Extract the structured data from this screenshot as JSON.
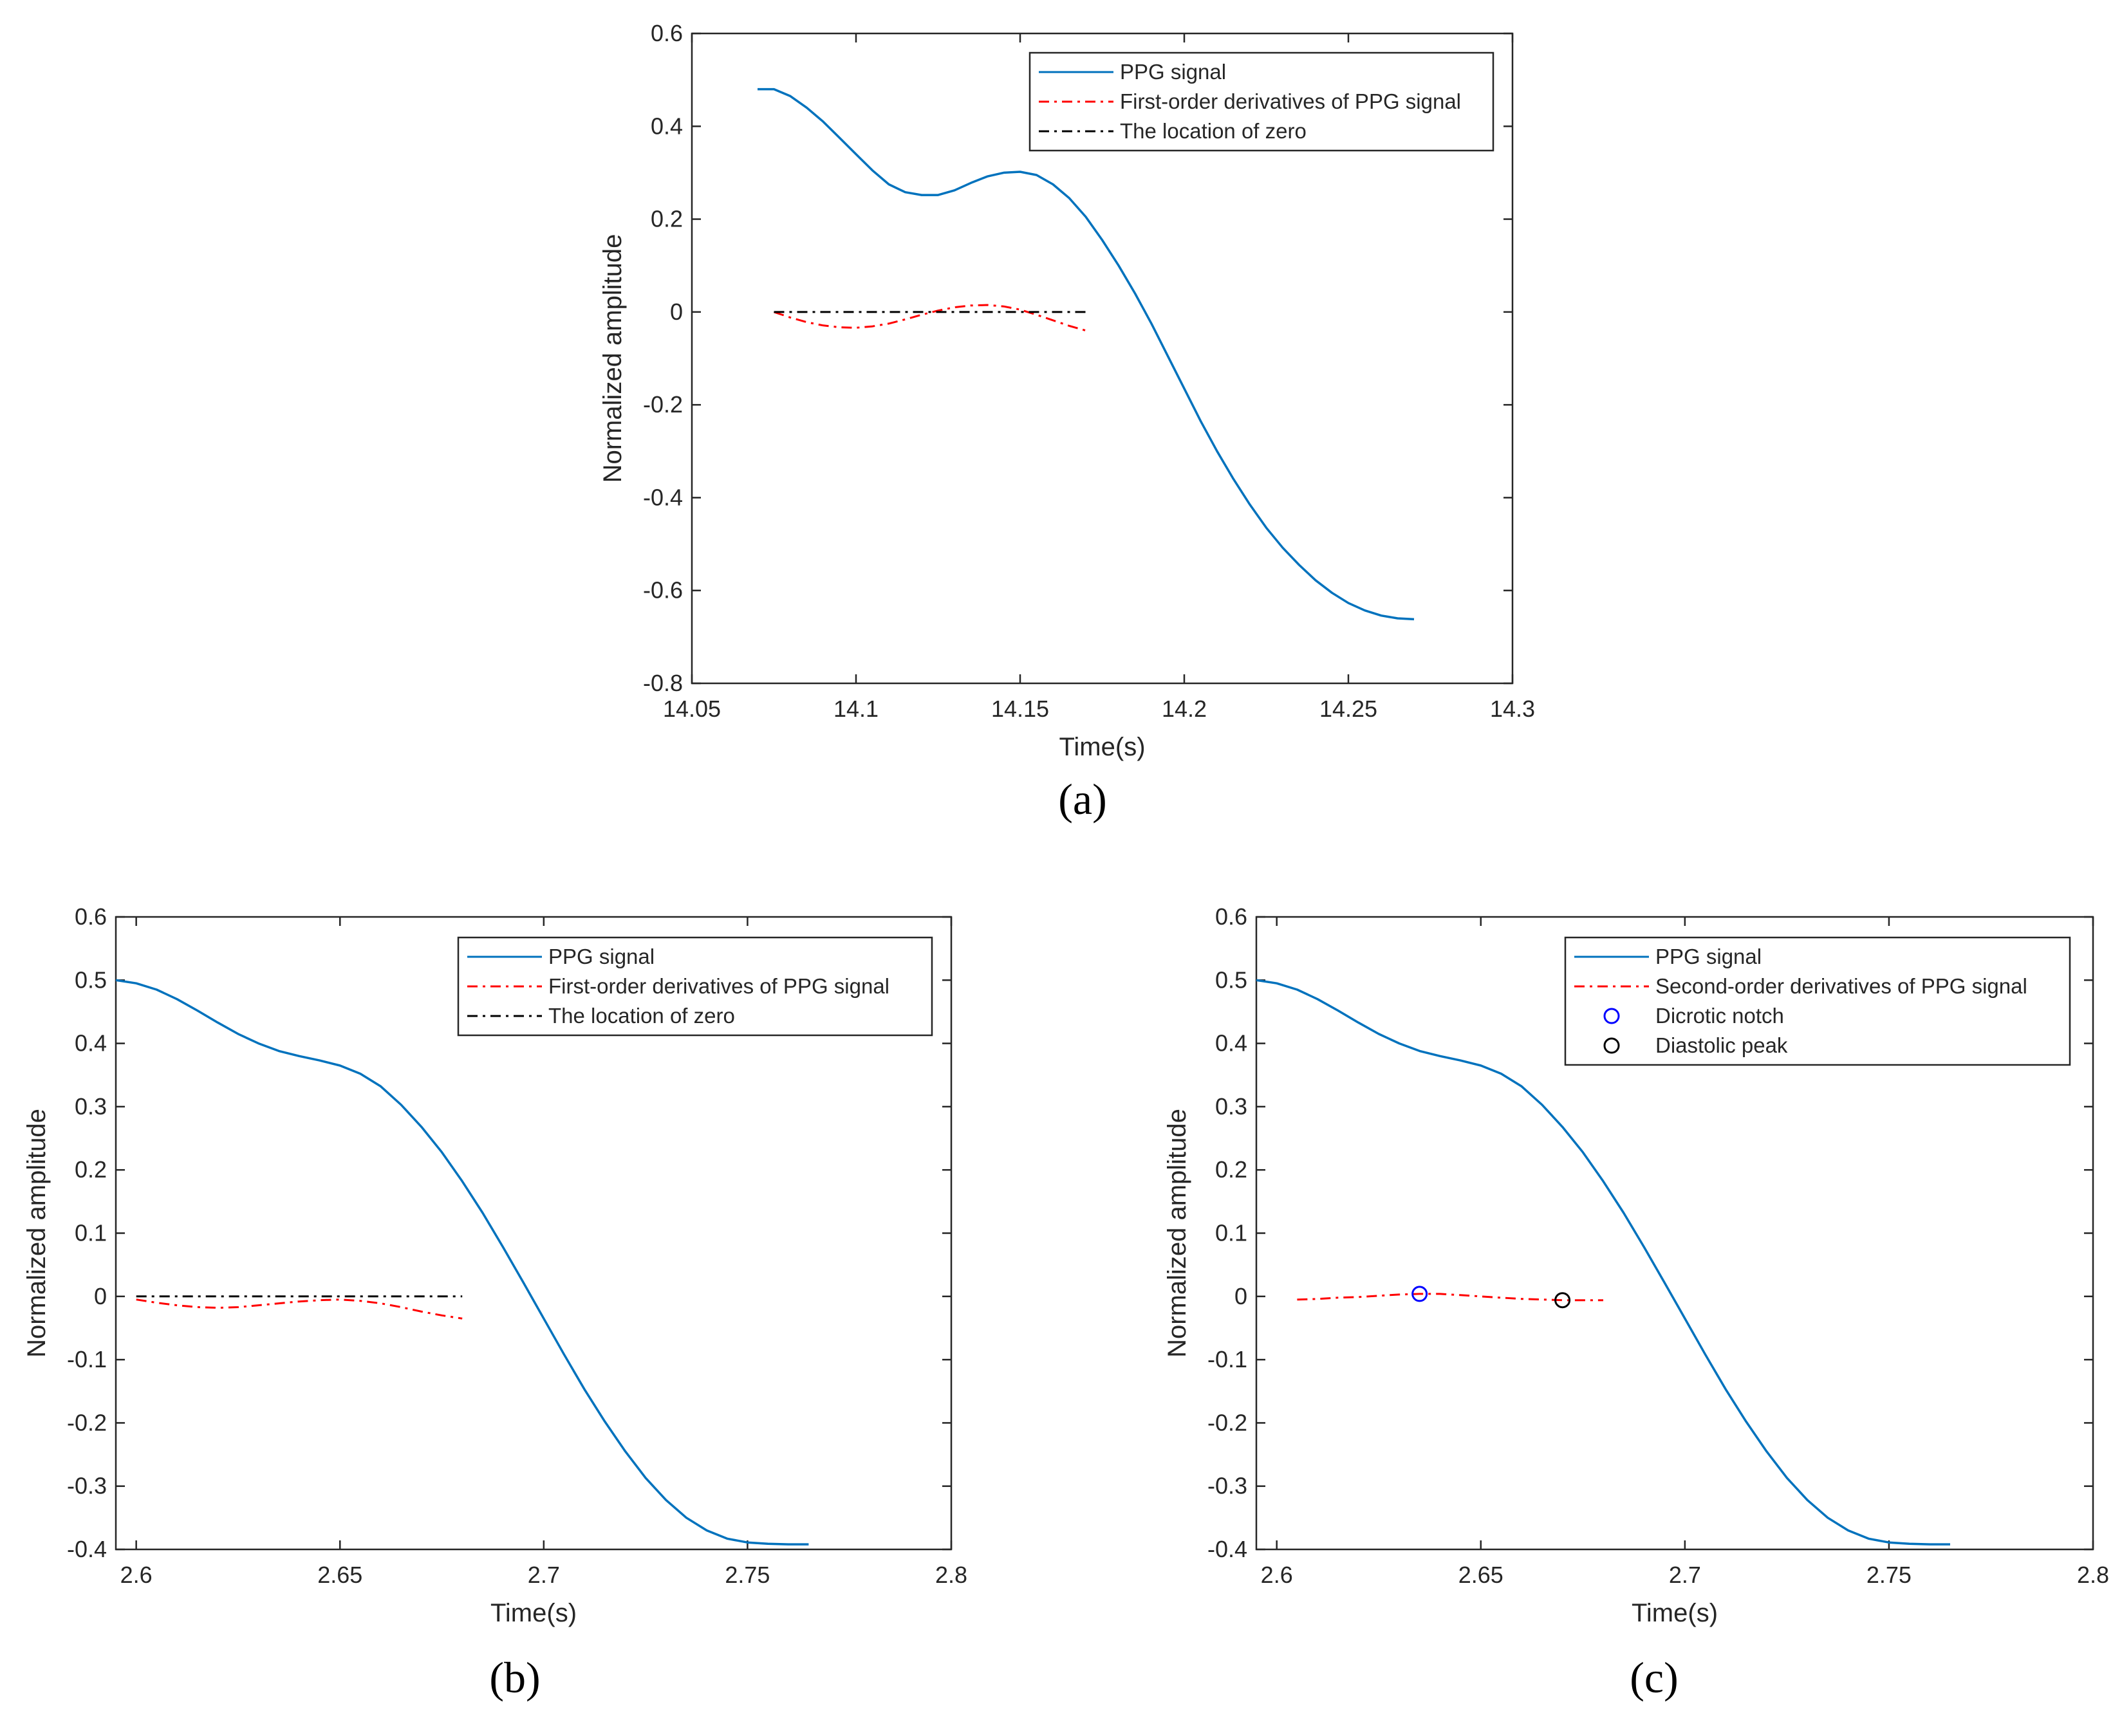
{
  "chart_data": [
    {
      "type": "line",
      "caption": "(a)",
      "xlabel": "Time(s)",
      "ylabel": "Normalized amplitude",
      "xlim": [
        14.05,
        14.3
      ],
      "ylim": [
        -0.8,
        0.6
      ],
      "xticks": [
        14.05,
        14.1,
        14.15,
        14.2,
        14.25,
        14.3
      ],
      "xtick_labels": [
        "14.05",
        "14.1",
        "14.15",
        "14.2",
        "14.25",
        "14.3"
      ],
      "yticks": [
        -0.8,
        -0.6,
        -0.4,
        -0.2,
        0,
        0.2,
        0.4,
        0.6
      ],
      "ytick_labels": [
        "-0.8",
        "-0.6",
        "-0.4",
        "-0.2",
        "0",
        "0.2",
        "0.4",
        "0.6"
      ],
      "legend_position": "top-right",
      "series": [
        {
          "name": "PPG signal",
          "color": "#0072BD",
          "style": "solid",
          "x": [
            14.07,
            14.075,
            14.08,
            14.085,
            14.09,
            14.095,
            14.1,
            14.105,
            14.11,
            14.115,
            14.12,
            14.125,
            14.13,
            14.135,
            14.14,
            14.145,
            14.15,
            14.155,
            14.16,
            14.165,
            14.17,
            14.175,
            14.18,
            14.185,
            14.19,
            14.195,
            14.2,
            14.205,
            14.21,
            14.215,
            14.22,
            14.225,
            14.23,
            14.235,
            14.24,
            14.245,
            14.25,
            14.255,
            14.26,
            14.265,
            14.27
          ],
          "y": [
            0.48,
            0.48,
            0.465,
            0.44,
            0.41,
            0.375,
            0.34,
            0.305,
            0.275,
            0.258,
            0.252,
            0.252,
            0.262,
            0.278,
            0.292,
            0.3,
            0.302,
            0.295,
            0.275,
            0.245,
            0.205,
            0.155,
            0.1,
            0.04,
            -0.025,
            -0.095,
            -0.165,
            -0.235,
            -0.3,
            -0.36,
            -0.415,
            -0.465,
            -0.508,
            -0.545,
            -0.578,
            -0.605,
            -0.627,
            -0.643,
            -0.654,
            -0.66,
            -0.662
          ]
        },
        {
          "name": "First-order derivatives of PPG signal",
          "color": "#FF0000",
          "style": "dashdot",
          "x": [
            14.075,
            14.08,
            14.085,
            14.09,
            14.095,
            14.1,
            14.105,
            14.11,
            14.115,
            14.12,
            14.125,
            14.13,
            14.135,
            14.14,
            14.145,
            14.15,
            14.155,
            14.16,
            14.165,
            14.17
          ],
          "y": [
            0,
            -0.012,
            -0.022,
            -0.029,
            -0.033,
            -0.034,
            -0.031,
            -0.025,
            -0.016,
            -0.006,
            0.003,
            0.01,
            0.014,
            0.015,
            0.012,
            0.005,
            -0.006,
            -0.018,
            -0.03,
            -0.04
          ]
        },
        {
          "name": "The location of zero",
          "color": "#000000",
          "style": "dashdot",
          "x": [
            14.075,
            14.17
          ],
          "y": [
            0,
            0
          ]
        }
      ]
    },
    {
      "type": "line",
      "caption": "(b)",
      "xlabel": "Time(s)",
      "ylabel": "Normalized amplitude",
      "xlim": [
        2.595,
        2.8
      ],
      "ylim": [
        -0.4,
        0.6
      ],
      "xticks": [
        2.6,
        2.65,
        2.7,
        2.75,
        2.8
      ],
      "xtick_labels": [
        "2.6",
        "2.65",
        "2.7",
        "2.75",
        "2.8"
      ],
      "yticks": [
        -0.4,
        -0.3,
        -0.2,
        -0.1,
        0,
        0.1,
        0.2,
        0.3,
        0.4,
        0.5,
        0.6
      ],
      "ytick_labels": [
        "-0.4",
        "-0.3",
        "-0.2",
        "-0.1",
        "0",
        "0.1",
        "0.2",
        "0.3",
        "0.4",
        "0.5",
        "0.6"
      ],
      "legend_position": "top-right",
      "series": [
        {
          "name": "PPG signal",
          "color": "#0072BD",
          "style": "solid",
          "x": [
            2.595,
            2.6,
            2.605,
            2.61,
            2.615,
            2.62,
            2.625,
            2.63,
            2.635,
            2.64,
            2.645,
            2.65,
            2.655,
            2.66,
            2.665,
            2.67,
            2.675,
            2.68,
            2.685,
            2.69,
            2.695,
            2.7,
            2.705,
            2.71,
            2.715,
            2.72,
            2.725,
            2.73,
            2.735,
            2.74,
            2.745,
            2.75,
            2.755,
            2.76,
            2.765
          ],
          "y": [
            0.5,
            0.495,
            0.485,
            0.47,
            0.452,
            0.433,
            0.415,
            0.4,
            0.388,
            0.38,
            0.373,
            0.365,
            0.352,
            0.332,
            0.303,
            0.268,
            0.228,
            0.182,
            0.132,
            0.078,
            0.022,
            -0.035,
            -0.092,
            -0.147,
            -0.198,
            -0.245,
            -0.287,
            -0.322,
            -0.35,
            -0.37,
            -0.383,
            -0.389,
            -0.391,
            -0.392,
            -0.392
          ]
        },
        {
          "name": "First-order derivatives of PPG signal",
          "color": "#FF0000",
          "style": "dashdot",
          "x": [
            2.6,
            2.605,
            2.61,
            2.615,
            2.62,
            2.625,
            2.63,
            2.635,
            2.64,
            2.645,
            2.65,
            2.655,
            2.66,
            2.665,
            2.67,
            2.675,
            2.68
          ],
          "y": [
            -0.005,
            -0.01,
            -0.014,
            -0.017,
            -0.018,
            -0.017,
            -0.014,
            -0.011,
            -0.008,
            -0.006,
            -0.005,
            -0.007,
            -0.011,
            -0.017,
            -0.024,
            -0.03,
            -0.035
          ]
        },
        {
          "name": "The location of zero",
          "color": "#000000",
          "style": "dashdot",
          "x": [
            2.6,
            2.68
          ],
          "y": [
            0,
            0
          ]
        }
      ]
    },
    {
      "type": "line",
      "caption": "(c)",
      "xlabel": "Time(s)",
      "ylabel": "Normalized amplitude",
      "xlim": [
        2.595,
        2.8
      ],
      "ylim": [
        -0.4,
        0.6
      ],
      "xticks": [
        2.6,
        2.65,
        2.7,
        2.75,
        2.8
      ],
      "xtick_labels": [
        "2.6",
        "2.65",
        "2.7",
        "2.75",
        "2.8"
      ],
      "yticks": [
        -0.4,
        -0.3,
        -0.2,
        -0.1,
        0,
        0.1,
        0.2,
        0.3,
        0.4,
        0.5,
        0.6
      ],
      "ytick_labels": [
        "-0.4",
        "-0.3",
        "-0.2",
        "-0.1",
        "0",
        "0.1",
        "0.2",
        "0.3",
        "0.4",
        "0.5",
        "0.6"
      ],
      "legend_position": "top-right",
      "series": [
        {
          "name": "PPG signal",
          "color": "#0072BD",
          "style": "solid",
          "x": [
            2.595,
            2.6,
            2.605,
            2.61,
            2.615,
            2.62,
            2.625,
            2.63,
            2.635,
            2.64,
            2.645,
            2.65,
            2.655,
            2.66,
            2.665,
            2.67,
            2.675,
            2.68,
            2.685,
            2.69,
            2.695,
            2.7,
            2.705,
            2.71,
            2.715,
            2.72,
            2.725,
            2.73,
            2.735,
            2.74,
            2.745,
            2.75,
            2.755,
            2.76,
            2.765
          ],
          "y": [
            0.5,
            0.495,
            0.485,
            0.47,
            0.452,
            0.433,
            0.415,
            0.4,
            0.388,
            0.38,
            0.373,
            0.365,
            0.352,
            0.332,
            0.303,
            0.268,
            0.228,
            0.182,
            0.132,
            0.078,
            0.022,
            -0.035,
            -0.092,
            -0.147,
            -0.198,
            -0.245,
            -0.287,
            -0.322,
            -0.35,
            -0.37,
            -0.383,
            -0.389,
            -0.391,
            -0.392,
            -0.392
          ]
        },
        {
          "name": "Second-order derivatives of PPG signal",
          "color": "#FF0000",
          "style": "dashdot",
          "x": [
            2.605,
            2.61,
            2.615,
            2.62,
            2.625,
            2.63,
            2.635,
            2.64,
            2.645,
            2.65,
            2.655,
            2.66,
            2.665,
            2.67,
            2.675,
            2.68
          ],
          "y": [
            -0.005,
            -0.004,
            -0.002,
            -0.001,
            0.001,
            0.003,
            0.004,
            0.004,
            0.002,
            0.0,
            -0.002,
            -0.004,
            -0.005,
            -0.006,
            -0.006,
            -0.006
          ]
        },
        {
          "name": "Dicrotic notch",
          "color": "#0000FF",
          "style": "marker",
          "x": [
            2.635
          ],
          "y": [
            0.004
          ]
        },
        {
          "name": "Diastolic peak",
          "color": "#000000",
          "style": "marker",
          "x": [
            2.67
          ],
          "y": [
            -0.006
          ]
        }
      ]
    }
  ]
}
